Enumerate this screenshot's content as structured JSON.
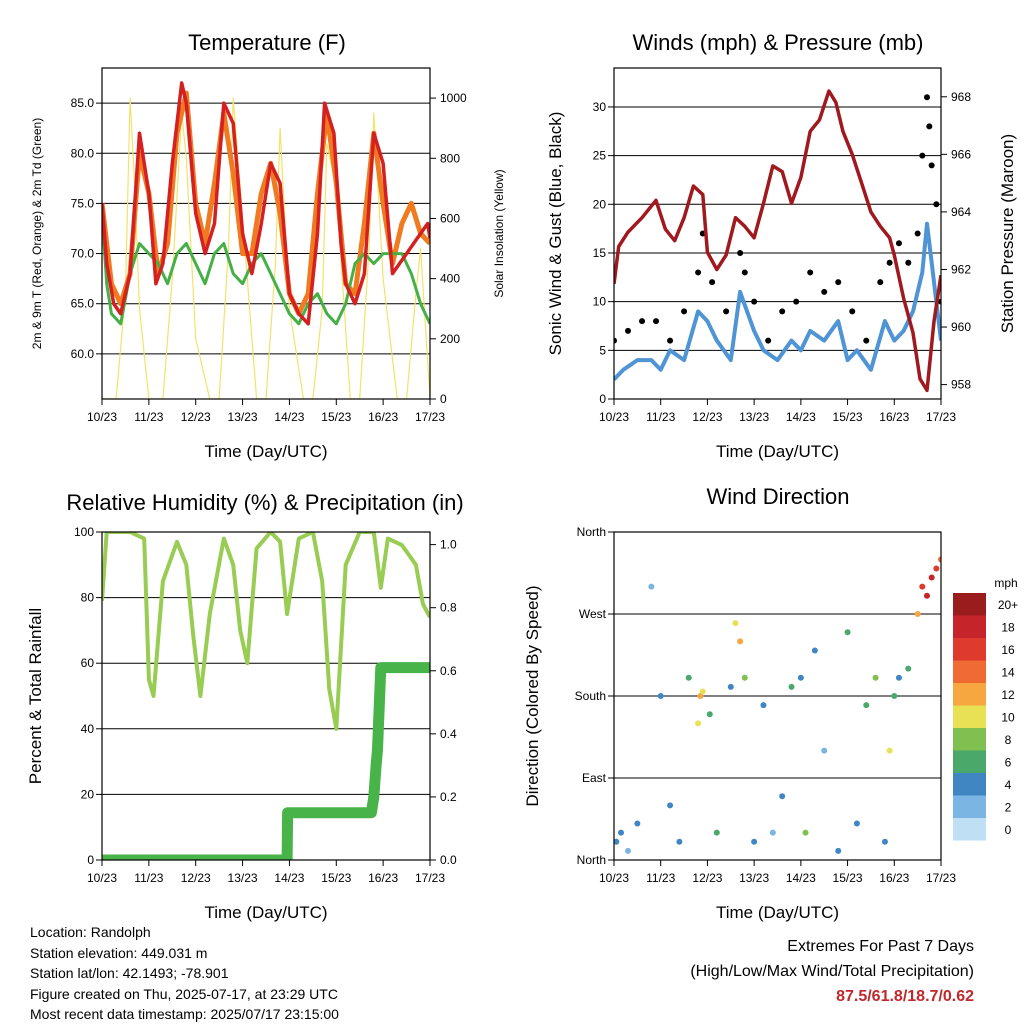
{
  "chart_data": [
    {
      "type": "line",
      "title": "Temperature (F)",
      "xlabel": "Time (Day/UTC)",
      "ylabel": "2m & 9m T (Red, Orange) & 2m Td (Green)",
      "y2label": "Solar Insolation (Yellow)",
      "x_ticks": [
        "10/23",
        "11/23",
        "12/23",
        "13/23",
        "14/23",
        "15/23",
        "16/23",
        "17/23"
      ],
      "y_ticks": [
        "60.0",
        "65.0",
        "70.0",
        "75.0",
        "80.0",
        "85.0"
      ],
      "y2_ticks": [
        "0",
        "200",
        "400",
        "600",
        "800",
        "1000"
      ],
      "ylim": [
        55.5,
        88.5
      ],
      "y2lim": [
        0,
        1100
      ],
      "grid": true,
      "colors": {
        "t2m": "#d42020",
        "t9m": "#f07a20",
        "td": "#45b045",
        "solar": "#f3e26a"
      },
      "series": [
        {
          "key": "t2m",
          "x": [
            0,
            0.1,
            0.25,
            0.4,
            0.6,
            0.8,
            1.0,
            1.15,
            1.3,
            1.5,
            1.7,
            1.8,
            2.0,
            2.2,
            2.4,
            2.6,
            2.8,
            3.0,
            3.2,
            3.4,
            3.6,
            3.8,
            4.0,
            4.2,
            4.4,
            4.6,
            4.75,
            4.95,
            5.1,
            5.2,
            5.4,
            5.6,
            5.8,
            6.0,
            6.2,
            6.35,
            6.5,
            6.65,
            6.8,
            6.95,
            7.0
          ],
          "y": [
            75,
            69,
            65,
            64,
            68,
            82,
            76,
            67,
            69,
            79,
            87,
            85,
            74,
            70,
            73,
            85,
            83,
            72,
            68,
            73,
            79,
            77,
            66,
            64,
            63,
            72,
            85,
            82,
            71,
            67,
            65,
            68,
            82,
            79,
            68,
            69,
            70,
            71,
            72,
            73,
            71.5
          ]
        },
        {
          "key": "t9m",
          "x": [
            0,
            0.2,
            0.4,
            0.6,
            0.8,
            1.0,
            1.2,
            1.4,
            1.6,
            1.8,
            2.0,
            2.2,
            2.4,
            2.6,
            2.8,
            3.0,
            3.2,
            3.4,
            3.6,
            3.8,
            4.0,
            4.2,
            4.4,
            4.6,
            4.8,
            5.0,
            5.2,
            5.4,
            5.6,
            5.8,
            6.0,
            6.2,
            6.4,
            6.6,
            6.8,
            7.0
          ],
          "y": [
            75,
            67,
            65,
            68,
            80,
            76,
            68,
            71,
            82,
            86,
            75,
            71,
            77,
            84,
            78,
            70,
            70,
            76,
            79,
            74,
            66,
            64,
            66,
            76,
            84,
            77,
            67,
            66,
            73,
            82,
            75,
            69,
            73,
            75,
            72,
            71
          ]
        },
        {
          "key": "td",
          "x": [
            0,
            0.1,
            0.2,
            0.4,
            0.6,
            0.8,
            1.0,
            1.2,
            1.4,
            1.6,
            1.8,
            2.0,
            2.2,
            2.4,
            2.6,
            2.8,
            3.0,
            3.2,
            3.4,
            3.6,
            3.8,
            4.0,
            4.2,
            4.4,
            4.6,
            4.8,
            5.0,
            5.2,
            5.4,
            5.6,
            5.8,
            6.0,
            6.2,
            6.4,
            6.6,
            6.8,
            7.0
          ],
          "y": [
            74,
            67,
            64,
            63,
            68,
            71,
            70,
            69,
            67,
            70,
            71,
            69,
            67,
            70,
            71,
            68,
            67,
            69,
            70,
            68,
            66,
            64,
            63,
            65,
            66,
            64,
            63,
            65,
            69,
            70,
            69,
            70,
            70,
            70,
            68,
            65,
            63
          ]
        },
        {
          "key": "solar",
          "x": [
            0,
            0.3,
            0.5,
            0.6,
            0.7,
            0.8,
            1.0,
            1.3,
            1.5,
            1.7,
            1.8,
            2.0,
            2.3,
            2.5,
            2.7,
            2.8,
            3.0,
            3.3,
            3.5,
            3.7,
            3.8,
            4.0,
            4.3,
            4.5,
            4.7,
            4.8,
            5.0,
            5.3,
            5.5,
            5.7,
            5.8,
            6.0,
            6.3,
            6.5,
            6.7,
            6.8,
            7.0
          ],
          "y": [
            0,
            0,
            350,
            1000,
            700,
            300,
            0,
            0,
            400,
            950,
            800,
            200,
            0,
            0,
            500,
            1000,
            600,
            0,
            0,
            450,
            900,
            300,
            0,
            0,
            300,
            850,
            700,
            0,
            0,
            500,
            950,
            400,
            0,
            0,
            350,
            500,
            0
          ]
        }
      ]
    },
    {
      "type": "scatter",
      "title": "Winds (mph) & Pressure (mb)",
      "xlabel": "Time (Day/UTC)",
      "ylabel": "Sonic Wind & Gust (Blue, Black)",
      "y2label": "Station Pressure (Maroon)",
      "x_ticks": [
        "10/23",
        "11/23",
        "12/23",
        "13/23",
        "14/23",
        "15/23",
        "16/23",
        "17/23"
      ],
      "y_ticks": [
        "0",
        "5",
        "10",
        "15",
        "20",
        "25",
        "30"
      ],
      "y2_ticks": [
        "958",
        "960",
        "962",
        "964",
        "966",
        "968"
      ],
      "ylim": [
        0,
        34
      ],
      "y2lim": [
        957.5,
        969
      ],
      "grid": true,
      "colors": {
        "wind": "#4f94d4",
        "gust": "#000000",
        "pressure": "#a0191e"
      },
      "series": [
        {
          "key": "pressure",
          "x": [
            0,
            0.1,
            0.3,
            0.6,
            0.9,
            1.1,
            1.3,
            1.5,
            1.7,
            1.9,
            2.0,
            2.2,
            2.4,
            2.6,
            2.8,
            3.0,
            3.2,
            3.4,
            3.6,
            3.8,
            4.0,
            4.2,
            4.4,
            4.6,
            4.75,
            4.9,
            5.1,
            5.3,
            5.5,
            5.7,
            5.9,
            6.0,
            6.2,
            6.4,
            6.55,
            6.7,
            6.85,
            7.0
          ],
          "y": [
            961.5,
            962.8,
            963.3,
            963.8,
            964.4,
            963.4,
            963.0,
            963.8,
            964.9,
            964.6,
            962.6,
            962.0,
            962.5,
            963.8,
            963.5,
            963.1,
            964.3,
            965.6,
            965.4,
            964.3,
            965.2,
            966.8,
            967.2,
            968.2,
            967.8,
            966.8,
            966.0,
            965.0,
            964.0,
            963.5,
            963.1,
            962.5,
            961.0,
            959.8,
            958.2,
            957.8,
            960.2,
            961.8
          ]
        },
        {
          "key": "wind",
          "x": [
            0,
            0.2,
            0.5,
            0.8,
            1.0,
            1.2,
            1.5,
            1.8,
            2.0,
            2.2,
            2.5,
            2.7,
            3.0,
            3.2,
            3.5,
            3.8,
            4.0,
            4.2,
            4.5,
            4.8,
            5.0,
            5.2,
            5.5,
            5.8,
            6.0,
            6.2,
            6.4,
            6.6,
            6.7,
            6.8,
            6.9,
            7.0
          ],
          "y": [
            2,
            3,
            4,
            4,
            3,
            5,
            4,
            9,
            8,
            6,
            4,
            11,
            7,
            5,
            4,
            6,
            5,
            7,
            6,
            8,
            4,
            5,
            3,
            8,
            6,
            7,
            9,
            13,
            18,
            14,
            10,
            6
          ]
        },
        {
          "key": "gust",
          "x": [
            0,
            0.3,
            0.6,
            0.9,
            1.2,
            1.5,
            1.8,
            1.9,
            2.1,
            2.4,
            2.7,
            2.8,
            3.0,
            3.3,
            3.6,
            3.9,
            4.2,
            4.5,
            4.8,
            5.1,
            5.4,
            5.7,
            5.9,
            6.1,
            6.3,
            6.5,
            6.6,
            6.7,
            6.75,
            6.8,
            6.9,
            7.0
          ],
          "y": [
            6,
            7,
            8,
            8,
            6,
            9,
            13,
            17,
            12,
            9,
            15,
            13,
            10,
            6,
            9,
            10,
            13,
            11,
            12,
            9,
            6,
            12,
            14,
            16,
            14,
            17,
            25,
            31,
            28,
            24,
            20,
            10
          ]
        }
      ]
    },
    {
      "type": "line",
      "title": "Relative Humidity (%) & Precipitation (in)",
      "xlabel": "Time (Day/UTC)",
      "ylabel": "Percent & Total Rainfall",
      "x_ticks": [
        "10/23",
        "11/23",
        "12/23",
        "13/23",
        "14/23",
        "15/23",
        "16/23",
        "17/23"
      ],
      "y_ticks": [
        "0",
        "20",
        "40",
        "60",
        "80",
        "100"
      ],
      "y2_ticks": [
        "0.0",
        "0.2",
        "0.4",
        "0.6",
        "0.8",
        "1.0"
      ],
      "ylim": [
        0,
        100
      ],
      "y2lim": [
        0,
        1.04
      ],
      "grid": true,
      "colors": {
        "rh": "#98cc52",
        "precip": "#48b348"
      },
      "series": [
        {
          "key": "rh",
          "x": [
            0,
            0.1,
            0.3,
            0.6,
            0.75,
            0.9,
            1.0,
            1.1,
            1.3,
            1.6,
            1.8,
            1.95,
            2.1,
            2.3,
            2.6,
            2.8,
            2.95,
            3.1,
            3.3,
            3.6,
            3.8,
            3.95,
            4.2,
            4.5,
            4.7,
            4.85,
            5.0,
            5.2,
            5.5,
            5.8,
            5.95,
            6.1,
            6.4,
            6.7,
            6.85,
            7.0
          ],
          "y": [
            79,
            100,
            100,
            100,
            99,
            98,
            55,
            50,
            85,
            97,
            90,
            68,
            50,
            75,
            98,
            90,
            70,
            60,
            95,
            100,
            97,
            75,
            98,
            100,
            85,
            52,
            40,
            90,
            100,
            100,
            83,
            98,
            96,
            90,
            78,
            74
          ]
        },
        {
          "key": "precip",
          "x": [
            0,
            2.0,
            3.95,
            3.96,
            4.5,
            5.3,
            5.75,
            5.8,
            5.85,
            5.88,
            5.95,
            6.1,
            7.0
          ],
          "y": [
            0,
            0,
            0,
            0.15,
            0.15,
            0.15,
            0.15,
            0.2,
            0.3,
            0.35,
            0.61,
            0.61,
            0.61
          ]
        }
      ]
    },
    {
      "type": "scatter",
      "title": "Wind Direction",
      "xlabel": "Time (Day/UTC)",
      "ylabel": "Direction (Colored By Speed)",
      "x_ticks": [
        "10/23",
        "11/23",
        "12/23",
        "13/23",
        "14/23",
        "15/23",
        "16/23",
        "17/23"
      ],
      "y_ticks": [
        "North",
        "East",
        "South",
        "West",
        "North"
      ],
      "ylim": [
        0,
        360
      ],
      "grid": true,
      "legend": {
        "title": "mph",
        "labels": [
          "20+",
          "18",
          "16",
          "14",
          "12",
          "10",
          "8",
          "6",
          "4",
          "2",
          "0"
        ],
        "colors": [
          "#9b1c1c",
          "#c4242a",
          "#de3a2e",
          "#ef6b33",
          "#f7a640",
          "#e8e055",
          "#80c050",
          "#4aa86a",
          "#3f86c3",
          "#7ab5e3",
          "#bfdff5"
        ]
      },
      "series": [
        {
          "key": "direction",
          "x": [
            0.05,
            0.15,
            0.3,
            0.5,
            0.8,
            1.0,
            1.2,
            1.4,
            1.6,
            1.8,
            1.85,
            1.9,
            2.05,
            2.2,
            2.5,
            2.6,
            2.7,
            2.8,
            3.0,
            3.2,
            3.4,
            3.6,
            3.8,
            4.0,
            4.1,
            4.3,
            4.5,
            4.8,
            5.0,
            5.2,
            5.4,
            5.6,
            5.8,
            5.9,
            6.0,
            6.1,
            6.3,
            6.5,
            6.6,
            6.7,
            6.8,
            6.9,
            7.0
          ],
          "y": [
            20,
            30,
            10,
            40,
            300,
            180,
            60,
            20,
            200,
            150,
            180,
            185,
            160,
            30,
            190,
            260,
            240,
            200,
            20,
            170,
            30,
            70,
            190,
            200,
            30,
            230,
            120,
            10,
            250,
            40,
            170,
            200,
            20,
            120,
            180,
            200,
            210,
            270,
            300,
            290,
            310,
            320,
            330
          ],
          "speed": [
            3,
            4,
            2,
            3,
            1,
            3,
            4,
            4,
            5,
            9,
            11,
            10,
            5,
            6,
            4,
            9,
            11,
            8,
            3,
            4,
            2,
            4,
            5,
            3,
            7,
            4,
            2,
            3,
            6,
            4,
            5,
            7,
            3,
            9,
            5,
            4,
            5,
            11,
            15,
            17,
            18,
            16,
            13
          ]
        }
      ]
    }
  ],
  "footer": {
    "location": "Location: Randolph",
    "elevation": "Station elevation: 449.031 m",
    "latlon": "Station lat/lon: 42.1493; -78.901",
    "created": "Figure created on Thu, 2025-07-17, at 23:29 UTC",
    "timestamp": "Most recent data timestamp: 2025/07/17 23:15:00"
  },
  "extremes": {
    "title": "Extremes For Past 7 Days",
    "subtitle": "(High/Low/Max Wind/Total Precipitation)",
    "values": "87.5/61.8/18.7/0.62"
  }
}
